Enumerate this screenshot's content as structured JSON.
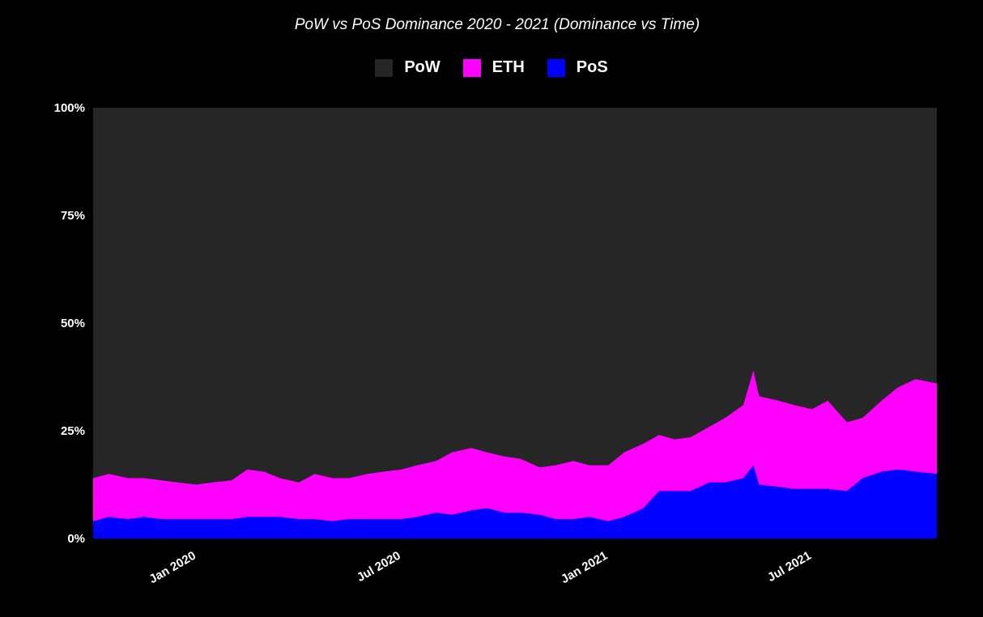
{
  "chart_data": {
    "type": "area",
    "stacked": true,
    "title": "PoW vs PoS Dominance 2020 - 2021 (Dominance vs Time)",
    "xlabel": "",
    "ylabel": "",
    "ylim": [
      0,
      100
    ],
    "y_ticks": [
      "0%",
      "25%",
      "50%",
      "75%",
      "100%"
    ],
    "y_tick_values": [
      0,
      25,
      50,
      75,
      100
    ],
    "x_ticks": [
      "Jan 2020",
      "Jul 2020",
      "Jan 2021",
      "Jul 2021"
    ],
    "x_tick_dates": [
      "2020-01-01",
      "2020-07-01",
      "2021-01-01",
      "2021-07-01"
    ],
    "xlim": [
      "2019-10-01",
      "2021-10-20"
    ],
    "legend_position": "top-center",
    "grid": false,
    "series": [
      {
        "name": "PoS",
        "color": "#0000ff",
        "points": [
          [
            "2019-10-01",
            4
          ],
          [
            "2019-10-15",
            5
          ],
          [
            "2019-11-01",
            4.5
          ],
          [
            "2019-11-15",
            5
          ],
          [
            "2019-12-01",
            4.5
          ],
          [
            "2019-12-15",
            4.5
          ],
          [
            "2020-01-01",
            4.5
          ],
          [
            "2020-01-15",
            4.5
          ],
          [
            "2020-02-01",
            4.5
          ],
          [
            "2020-02-15",
            5
          ],
          [
            "2020-03-01",
            5
          ],
          [
            "2020-03-15",
            5
          ],
          [
            "2020-04-01",
            4.5
          ],
          [
            "2020-04-15",
            4.5
          ],
          [
            "2020-05-01",
            4
          ],
          [
            "2020-05-15",
            4.5
          ],
          [
            "2020-06-01",
            4.5
          ],
          [
            "2020-06-15",
            4.5
          ],
          [
            "2020-07-01",
            4.5
          ],
          [
            "2020-07-15",
            5
          ],
          [
            "2020-08-01",
            6
          ],
          [
            "2020-08-15",
            5.5
          ],
          [
            "2020-09-01",
            6.5
          ],
          [
            "2020-09-15",
            7
          ],
          [
            "2020-10-01",
            6
          ],
          [
            "2020-10-15",
            6
          ],
          [
            "2020-11-01",
            5.5
          ],
          [
            "2020-11-15",
            4.5
          ],
          [
            "2020-12-01",
            4.5
          ],
          [
            "2020-12-15",
            5
          ],
          [
            "2021-01-01",
            4
          ],
          [
            "2021-01-15",
            5
          ],
          [
            "2021-02-01",
            7
          ],
          [
            "2021-02-15",
            11
          ],
          [
            "2021-03-01",
            11
          ],
          [
            "2021-03-15",
            11
          ],
          [
            "2021-04-01",
            13
          ],
          [
            "2021-04-15",
            13
          ],
          [
            "2021-05-01",
            14
          ],
          [
            "2021-05-10",
            17
          ],
          [
            "2021-05-15",
            12.5
          ],
          [
            "2021-06-01",
            12
          ],
          [
            "2021-06-15",
            11.5
          ],
          [
            "2021-07-01",
            11.5
          ],
          [
            "2021-07-15",
            11.5
          ],
          [
            "2021-08-01",
            11
          ],
          [
            "2021-08-15",
            14
          ],
          [
            "2021-09-01",
            15.5
          ],
          [
            "2021-09-15",
            16
          ],
          [
            "2021-10-01",
            15.5
          ],
          [
            "2021-10-20",
            15
          ]
        ]
      },
      {
        "name": "ETH",
        "color": "#ff00ff",
        "points": [
          [
            "2019-10-01",
            14
          ],
          [
            "2019-10-15",
            15
          ],
          [
            "2019-11-01",
            14
          ],
          [
            "2019-11-15",
            14
          ],
          [
            "2019-12-01",
            13.5
          ],
          [
            "2019-12-15",
            13
          ],
          [
            "2020-01-01",
            12.5
          ],
          [
            "2020-01-15",
            13
          ],
          [
            "2020-02-01",
            13.5
          ],
          [
            "2020-02-15",
            16
          ],
          [
            "2020-03-01",
            15.5
          ],
          [
            "2020-03-15",
            14
          ],
          [
            "2020-04-01",
            13
          ],
          [
            "2020-04-15",
            15
          ],
          [
            "2020-05-01",
            14
          ],
          [
            "2020-05-15",
            14
          ],
          [
            "2020-06-01",
            15
          ],
          [
            "2020-06-15",
            15.5
          ],
          [
            "2020-07-01",
            16
          ],
          [
            "2020-07-15",
            17
          ],
          [
            "2020-08-01",
            18
          ],
          [
            "2020-08-15",
            20
          ],
          [
            "2020-09-01",
            21
          ],
          [
            "2020-09-15",
            20
          ],
          [
            "2020-10-01",
            19
          ],
          [
            "2020-10-15",
            18.5
          ],
          [
            "2020-11-01",
            16.5
          ],
          [
            "2020-11-15",
            17
          ],
          [
            "2020-12-01",
            18
          ],
          [
            "2020-12-15",
            17
          ],
          [
            "2021-01-01",
            17
          ],
          [
            "2021-01-15",
            20
          ],
          [
            "2021-02-01",
            22
          ],
          [
            "2021-02-15",
            24
          ],
          [
            "2021-03-01",
            23
          ],
          [
            "2021-03-15",
            23.5
          ],
          [
            "2021-04-01",
            26
          ],
          [
            "2021-04-15",
            28
          ],
          [
            "2021-05-01",
            31
          ],
          [
            "2021-05-10",
            39
          ],
          [
            "2021-05-15",
            33
          ],
          [
            "2021-06-01",
            32
          ],
          [
            "2021-06-15",
            31
          ],
          [
            "2021-07-01",
            30
          ],
          [
            "2021-07-15",
            32
          ],
          [
            "2021-08-01",
            27
          ],
          [
            "2021-08-15",
            28
          ],
          [
            "2021-09-01",
            32
          ],
          [
            "2021-09-15",
            35
          ],
          [
            "2021-10-01",
            37
          ],
          [
            "2021-10-20",
            36
          ]
        ]
      },
      {
        "name": "PoW",
        "color": "#262626",
        "points": [
          [
            "2019-10-01",
            100
          ],
          [
            "2021-10-20",
            100
          ]
        ]
      }
    ]
  }
}
